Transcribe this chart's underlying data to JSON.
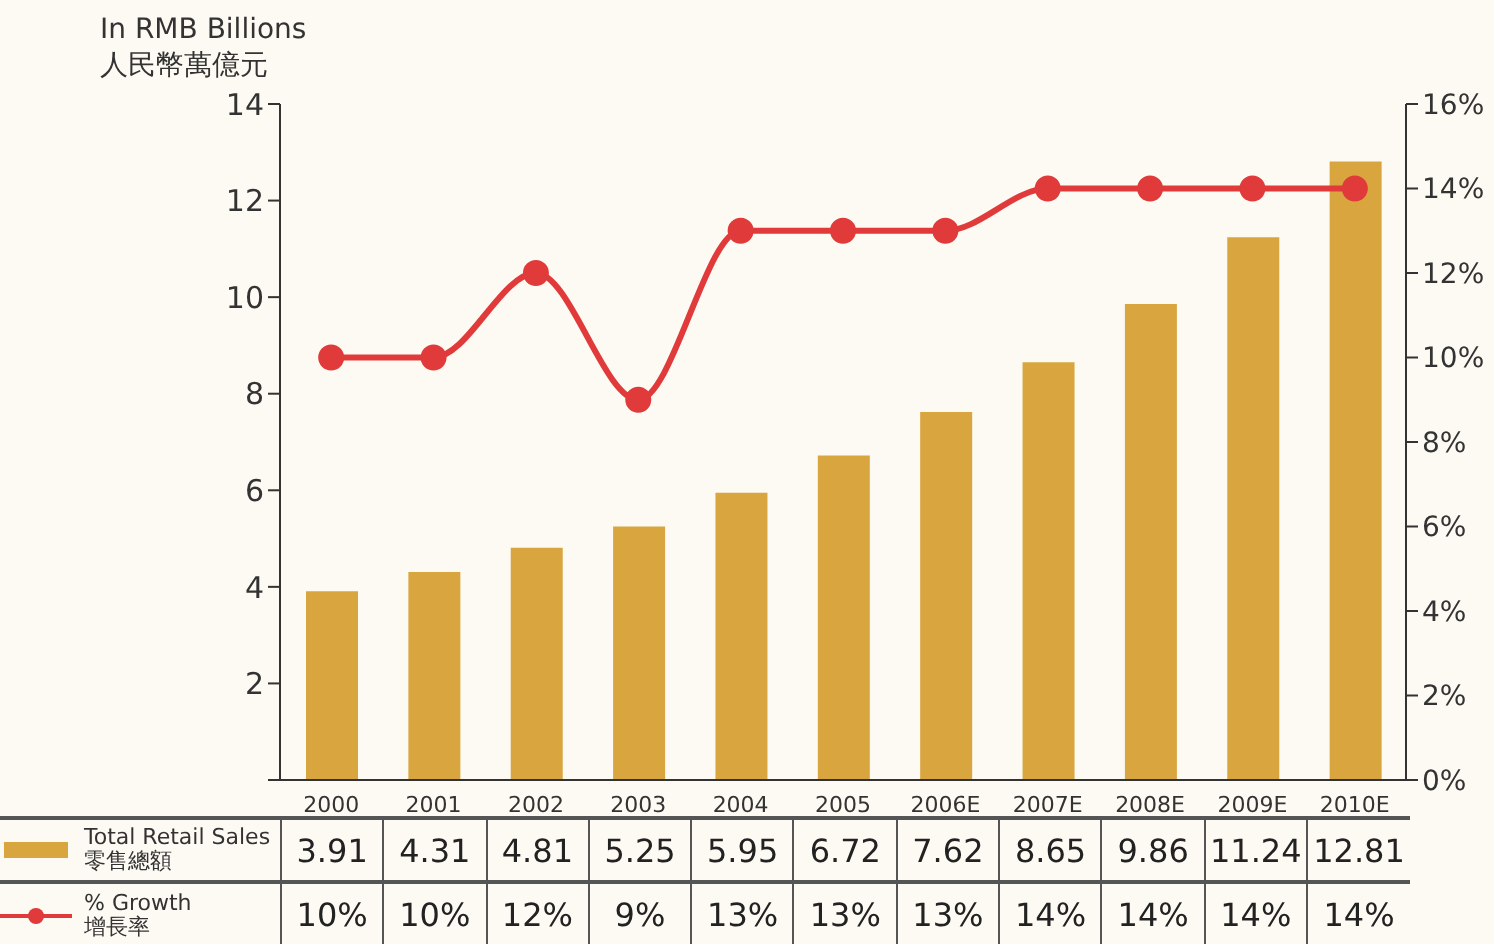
{
  "chart_data": {
    "type": "bar",
    "ylabel": "In RMB Billions\n人民幣萬億元",
    "categories": [
      "2000",
      "2001",
      "2002",
      "2003",
      "2004",
      "2005",
      "2006E",
      "2007E",
      "2008E",
      "2009E",
      "2010E"
    ],
    "series": [
      {
        "name": "Total Retail Sales\n零售總額",
        "color": "#d9a53f",
        "values": [
          3.91,
          4.31,
          4.81,
          5.25,
          5.95,
          6.72,
          7.62,
          8.65,
          9.86,
          11.24,
          12.81
        ],
        "value_labels": [
          "3.91",
          "4.31",
          "4.81",
          "5.25",
          "5.95",
          "6.72",
          "7.62",
          "8.65",
          "9.86",
          "11.24",
          "12.81"
        ]
      },
      {
        "name": "% Growth\n增長率",
        "type": "line",
        "axis": "y2",
        "color": "#e03a3a",
        "values": [
          10,
          10,
          12,
          9,
          13,
          13,
          13,
          14,
          14,
          14,
          14
        ],
        "value_labels": [
          "10%",
          "10%",
          "12%",
          "9%",
          "13%",
          "13%",
          "13%",
          "14%",
          "14%",
          "14%",
          "14%"
        ]
      }
    ],
    "ylim": [
      0,
      14
    ],
    "yticks": [
      {
        "value": 0,
        "label": null
      },
      2,
      4,
      6,
      8,
      10,
      12,
      14
    ],
    "y2lim": [
      0,
      16
    ],
    "y2ticks": [
      {
        "value": 0,
        "label": "0%"
      },
      {
        "value": 2,
        "label": "2%"
      },
      {
        "value": 4,
        "label": "4%"
      },
      {
        "value": 6,
        "label": "6%"
      },
      {
        "value": 8,
        "label": "8%"
      },
      {
        "value": 10,
        "label": "10%"
      },
      {
        "value": 12,
        "label": "12%"
      },
      {
        "value": 14,
        "label": "14%"
      },
      {
        "value": 16,
        "label": "16%"
      }
    ],
    "legend": "bottom",
    "marker": "circle",
    "line_style": "solid"
  }
}
